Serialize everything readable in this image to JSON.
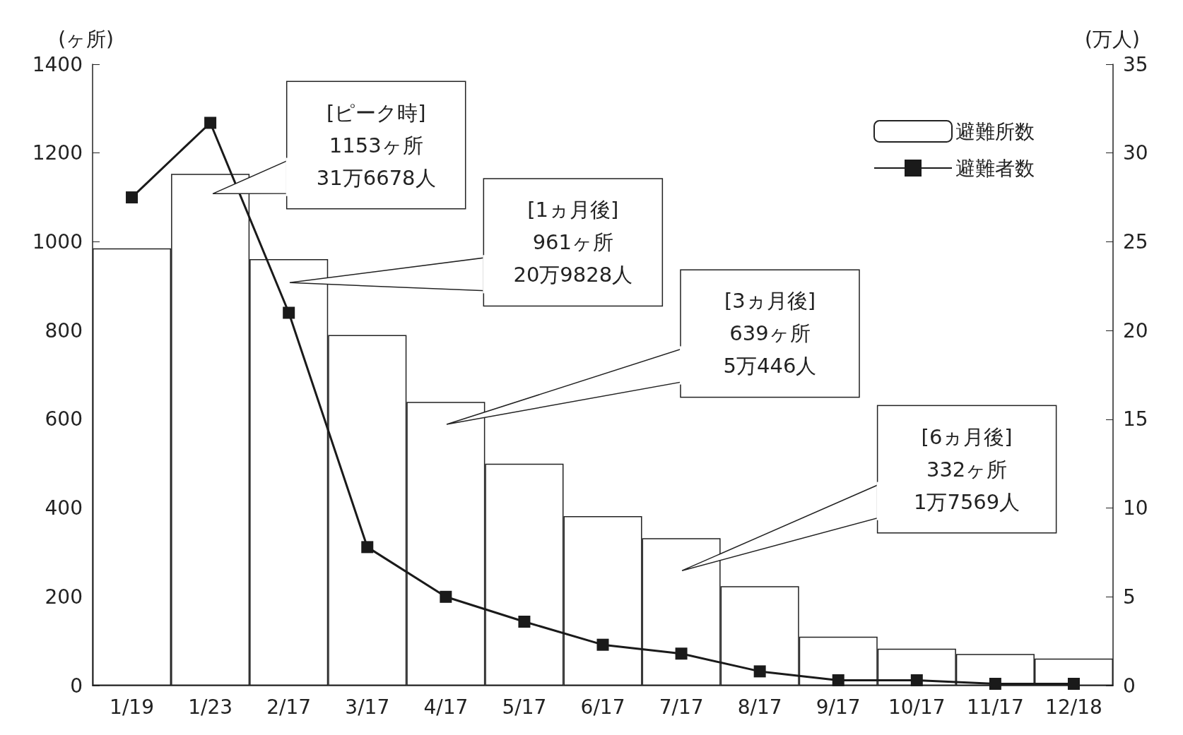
{
  "chart_data": {
    "type": "bar",
    "ylabel": "(ヶ所)",
    "y2label": "(万人)",
    "categories": [
      "1/19",
      "1/23",
      "2/17",
      "3/17",
      "4/17",
      "5/17",
      "6/17",
      "7/17",
      "8/17",
      "9/17",
      "10/17",
      "11/17",
      "12/18"
    ],
    "series": [
      {
        "name": "避難所数",
        "color": "#ffffff",
        "values": [
          985,
          1153,
          961,
          790,
          639,
          500,
          382,
          332,
          224,
          110,
          83,
          71,
          61
        ]
      },
      {
        "name": "避難者数",
        "type": "line",
        "axis": "y2",
        "color": "#1a1a1a",
        "marker": "square",
        "line_style": "solid",
        "values": [
          27.5,
          31.7,
          21.0,
          7.8,
          5.0,
          3.6,
          2.3,
          1.8,
          0.8,
          0.3,
          0.3,
          0.1,
          0.1
        ]
      }
    ],
    "ylim": [
      0,
      1400
    ],
    "yticks": [
      0,
      200,
      400,
      600,
      800,
      1000,
      1200,
      1400
    ],
    "y2lim": [
      0,
      35
    ],
    "y2ticks": [
      0,
      5,
      10,
      15,
      20,
      25,
      30,
      35
    ],
    "legend": "top right",
    "grid": false,
    "annotations": [
      "[ピーク時]\n1153ヶ所\n31万6678人",
      "[1ヵ月後]\n961ヶ所\n20万9828人",
      "[3ヵ月後]\n639ヶ所\n5万446人",
      "[6ヵ月後]\n332ヶ所\n1万7569人"
    ]
  }
}
